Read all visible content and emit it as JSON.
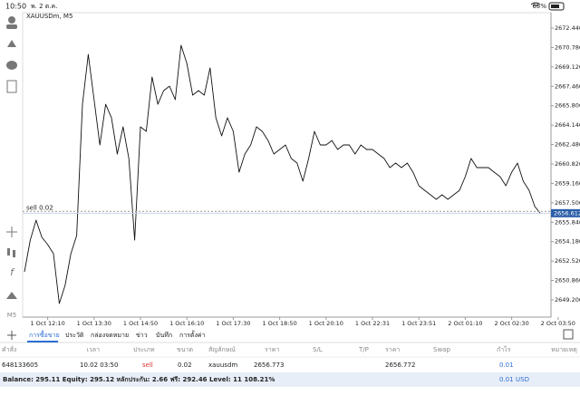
{
  "status_bar": {
    "time": "10:50",
    "date": "พ. 2 ต.ค.",
    "battery": "65%"
  },
  "chart_data": {
    "type": "line",
    "title": "XAUUSDm, M5",
    "color": "#111111",
    "categories": [
      null,
      null,
      null,
      null,
      "1 Oct 12:10",
      null,
      null,
      null,
      null,
      null,
      null,
      null,
      "1 Oct 13:30",
      null,
      null,
      null,
      null,
      null,
      null,
      null,
      "1 Oct 14:50",
      null,
      null,
      null,
      null,
      null,
      null,
      null,
      "1 Oct 16:10",
      null,
      null,
      null,
      null,
      null,
      null,
      null,
      "1 Oct 17:30",
      null,
      null,
      null,
      null,
      null,
      null,
      null,
      "1 Oct 18:50",
      null,
      null,
      null,
      null,
      null,
      null,
      null,
      "1 Oct 20:10",
      null,
      null,
      null,
      null,
      null,
      null,
      null,
      "1 Oct 22:31",
      null,
      null,
      null,
      null,
      null,
      null,
      null,
      "1 Oct 23:51",
      null,
      null,
      null,
      null,
      null,
      null,
      null,
      "2 Oct 01:10",
      null,
      null,
      null,
      null,
      null,
      null,
      null,
      "2 Oct 02:30",
      null,
      null,
      null,
      null,
      null,
      null,
      null,
      "2 Oct 03:50"
    ],
    "values": [
      2651.6,
      2654.31,
      2656.02,
      2654.55,
      2653.93,
      2653.15,
      2648.89,
      2650.44,
      2653.15,
      2654.7,
      2665.93,
      2670.19,
      2666.32,
      2662.45,
      2665.93,
      2664.77,
      2661.67,
      2664.0,
      2661.29,
      2654.31,
      2664.0,
      2663.61,
      2668.26,
      2665.93,
      2667.1,
      2667.48,
      2666.32,
      2670.97,
      2669.42,
      2666.71,
      2667.1,
      2666.71,
      2669.03,
      2664.77,
      2663.22,
      2664.77,
      2663.61,
      2660.12,
      2661.67,
      2662.45,
      2664.0,
      2663.61,
      2662.83,
      2661.67,
      2662.06,
      2662.45,
      2661.29,
      2660.9,
      2659.35,
      2661.29,
      2663.61,
      2662.45,
      2662.45,
      2662.83,
      2662.06,
      2662.45,
      2662.45,
      2661.67,
      2662.45,
      2662.06,
      2662.06,
      2661.67,
      2661.29,
      2660.51,
      2660.9,
      2660.51,
      2660.9,
      2660.12,
      2658.96,
      2658.57,
      2658.19,
      2657.8,
      2658.19,
      2657.8,
      2658.19,
      2658.57,
      2659.74,
      2661.29,
      2660.51,
      2660.51,
      2660.51,
      2660.12,
      2659.74,
      2658.96,
      2660.12,
      2660.9,
      2659.35,
      2658.57,
      2657.18,
      2656.56,
      null,
      null,
      null
    ],
    "ylim": [
      2648.27,
      2673.14
    ],
    "yticks": [
      {
        "value": 2672.44,
        "label": "2672.440"
      },
      {
        "value": 2670.78,
        "label": "2670.780"
      },
      {
        "value": 2669.12,
        "label": "2669.120"
      },
      {
        "value": 2667.46,
        "label": "2667.460"
      },
      {
        "value": 2665.8,
        "label": "2665.800"
      },
      {
        "value": 2664.14,
        "label": "2664.140"
      },
      {
        "value": 2662.48,
        "label": "2662.480"
      },
      {
        "value": 2660.82,
        "label": "2660.820"
      },
      {
        "value": 2659.16,
        "label": "2659.160"
      },
      {
        "value": 2657.5,
        "label": "2657.500"
      },
      {
        "value": 2655.84,
        "label": "2655.840"
      },
      {
        "value": 2654.18,
        "label": "2654.180"
      },
      {
        "value": 2652.52,
        "label": "2652.520"
      },
      {
        "value": 2650.86,
        "label": "2650.860"
      },
      {
        "value": 2649.2,
        "label": "2649.200"
      }
    ],
    "order_line": {
      "label": "sell 0.02",
      "value": 2656.773
    },
    "last_price": 2656.612
  },
  "toolbar": {
    "period": "M5"
  },
  "tabs": [
    "การซื้อขาย",
    "ประวัติ",
    "กล่องจดหมาย",
    "ข่าว",
    "บันทึก",
    "การตั้งค่า"
  ],
  "table": {
    "headers": [
      "คำสั่ง",
      "เวลา",
      "ประเภท",
      "ขนาด",
      "สัญลักษณ์",
      "ราคา",
      "S/L",
      "T/P",
      "ราคา",
      "Swap",
      "กำไร",
      "หมายเหตุ"
    ],
    "row": {
      "order": "648133605",
      "time": "10.02 03:50",
      "type": "sell",
      "volume": "0.02",
      "symbol": "xauusdm",
      "open_price": "2656.773",
      "price": "2656.772",
      "profit": "0.01"
    }
  },
  "summary": {
    "text": "Balance: 295.11 Equity: 295.12 หลักประกัน: 2.66 ฟรี: 292.46 Level: 11 108.21%",
    "profit": "0.01",
    "currency": "USD"
  }
}
